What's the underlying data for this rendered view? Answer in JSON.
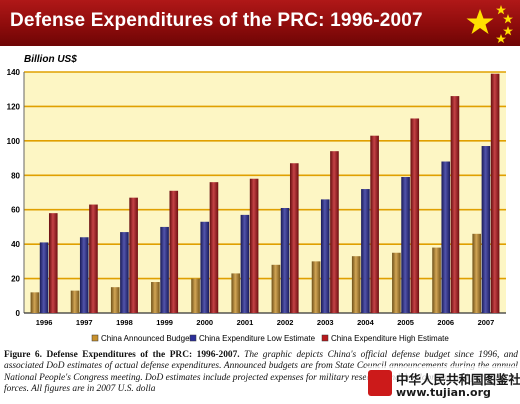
{
  "header": {
    "title": "Defense Expenditures of the PRC: 1996-2007",
    "flag_color": "#de2910",
    "star_color": "#ffde00"
  },
  "chart_data": {
    "type": "bar",
    "title": "Defense Expenditures of the PRC: 1996-2007",
    "unit_label": "Billion US$",
    "categories": [
      "1996",
      "1997",
      "1998",
      "1999",
      "2000",
      "2001",
      "2002",
      "2003",
      "2004",
      "2005",
      "2006",
      "2007"
    ],
    "series": [
      {
        "name": "China Announced Budget",
        "color": "#c8912e",
        "values": [
          12,
          13,
          15,
          18,
          20,
          23,
          28,
          30,
          33,
          35,
          38,
          46
        ]
      },
      {
        "name": "China Expenditure Low Estimate",
        "color": "#2c2f9a",
        "values": [
          41,
          44,
          47,
          50,
          53,
          57,
          61,
          66,
          72,
          79,
          88,
          97
        ]
      },
      {
        "name": "China Expenditure High Estimate",
        "color": "#b8191c",
        "values": [
          58,
          63,
          67,
          71,
          76,
          78,
          87,
          94,
          103,
          113,
          126,
          139
        ]
      }
    ],
    "ylim": [
      0,
      140
    ],
    "yticks": [
      0,
      20,
      40,
      60,
      80,
      100,
      120,
      140
    ],
    "grid": true,
    "legend_position": "bottom",
    "plot_background": "#fdf6c4",
    "gridline_color": "#e0a000"
  },
  "caption": {
    "figure_label": "Figure 6. Defense Expenditures of the PRC:  1996-2007.",
    "text_part1": "The graphic depicts China's official defense budget since 1996, and associated DoD estimates of actual defense expenditures.  Announced budgets are from State Council announcements during the annual National People's Congress meeting.  DoD estimates include projected expenses for",
    "text_part2": "military research and development, and paramilitary forces.  All figures are in 2007 U.S. dolla"
  },
  "watermark": {
    "line1": "中华人民共和国图鉴社",
    "line2": "www.tujian.org"
  }
}
